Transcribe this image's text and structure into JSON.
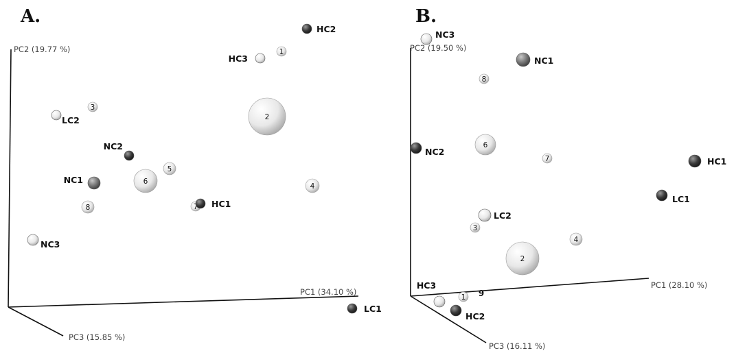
{
  "chart_data": [
    {
      "type": "scatter",
      "panel": "A.",
      "axes": {
        "x": "PC1 (34.10 %)",
        "y": "PC2 (19.77 %)",
        "z": "PC3 (15.85 %)"
      },
      "samples": [
        {
          "label": "HC2",
          "shade": "dark"
        },
        {
          "label": "HC3",
          "shade": "light"
        },
        {
          "label": "LC2",
          "shade": "light"
        },
        {
          "label": "NC2",
          "shade": "dark"
        },
        {
          "label": "NC1",
          "shade": "medium"
        },
        {
          "label": "HC1",
          "shade": "dark"
        },
        {
          "label": "NC3",
          "shade": "light"
        },
        {
          "label": "LC1",
          "shade": "dark"
        }
      ],
      "clusters": [
        {
          "label": "1"
        },
        {
          "label": "2"
        },
        {
          "label": "3"
        },
        {
          "label": "4"
        },
        {
          "label": "5"
        },
        {
          "label": "6"
        },
        {
          "label": "7"
        },
        {
          "label": "8"
        }
      ]
    },
    {
      "type": "scatter",
      "panel": "B.",
      "axes": {
        "x": "PC1 (28.10 %)",
        "y": "PC2 (19.50 %)",
        "z": "PC3 (16.11 %)"
      },
      "samples": [
        {
          "label": "NC3",
          "shade": "light"
        },
        {
          "label": "NC1",
          "shade": "medium"
        },
        {
          "label": "NC2",
          "shade": "dark"
        },
        {
          "label": "HC1",
          "shade": "dark"
        },
        {
          "label": "LC1",
          "shade": "dark"
        },
        {
          "label": "LC2",
          "shade": "light"
        },
        {
          "label": "HC3",
          "shade": "light"
        },
        {
          "label": "HC2",
          "shade": "dark"
        }
      ],
      "clusters": [
        {
          "label": "8"
        },
        {
          "label": "6"
        },
        {
          "label": "7"
        },
        {
          "label": "3"
        },
        {
          "label": "4"
        },
        {
          "label": "2"
        },
        {
          "label": "1"
        },
        {
          "label": "9"
        }
      ]
    }
  ],
  "colors": {
    "dark": "#2f2f2f",
    "medium": "#6e6e6e",
    "light": "#e6e6e6",
    "axis": "#111111"
  }
}
